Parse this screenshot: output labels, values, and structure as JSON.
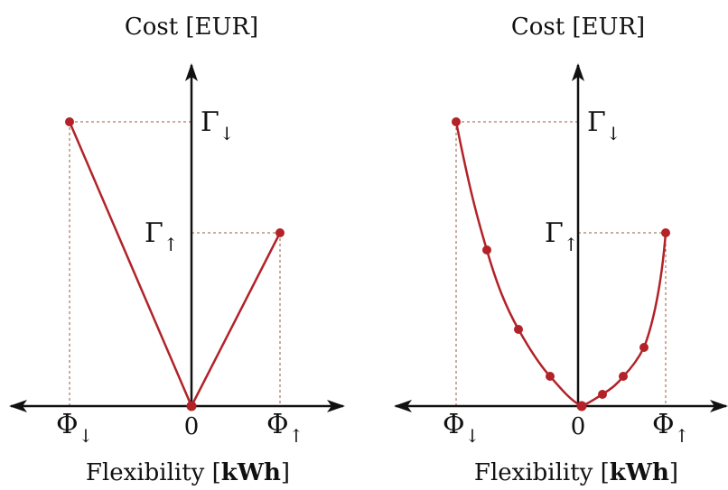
{
  "panels": [
    {
      "y_title": "Cost [EUR]",
      "x_title_pre": "Flexibility [",
      "x_title_unit": "kWh",
      "x_title_post": "]",
      "x_zero": "0",
      "phi_down": {
        "sym": "Φ",
        "sub": "↓"
      },
      "phi_up": {
        "sym": "Φ",
        "sub": "↑"
      },
      "gamma_down": {
        "sym": "Γ",
        "sub": "↓"
      },
      "gamma_up": {
        "sym": "Γ",
        "sub": "↑"
      }
    },
    {
      "y_title": "Cost [EUR]",
      "x_title_pre": "Flexibility [",
      "x_title_unit": "kWh",
      "x_title_post": "]",
      "x_zero": "0",
      "phi_down": {
        "sym": "Φ",
        "sub": "↓"
      },
      "phi_up": {
        "sym": "Φ",
        "sub": "↑"
      },
      "gamma_down": {
        "sym": "Γ",
        "sub": "↓"
      },
      "gamma_up": {
        "sym": "Γ",
        "sub": "↑"
      }
    }
  ],
  "colors": {
    "curve": "#b22228",
    "axis": "#111111",
    "guide": "#9a5a3a"
  }
}
